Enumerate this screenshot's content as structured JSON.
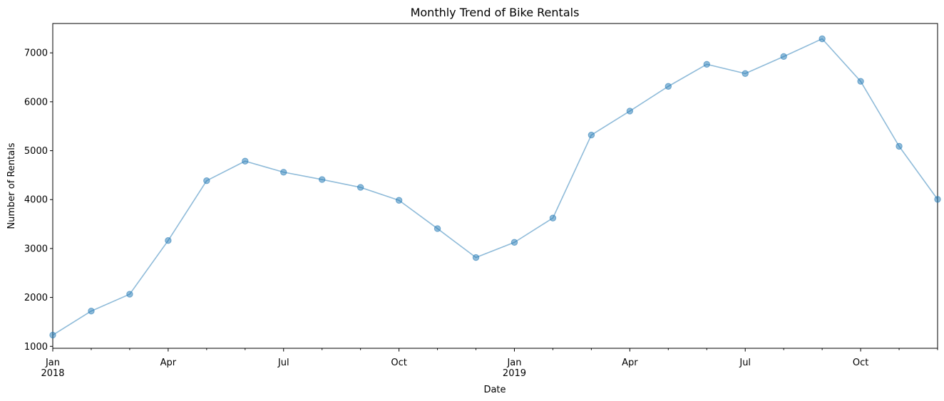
{
  "chart_data": {
    "type": "line",
    "title": "Monthly Trend of Bike Rentals",
    "xlabel": "Date",
    "ylabel": "Number of Rentals",
    "ylim": [
      960,
      7600
    ],
    "xlim": [
      "2018-01",
      "2019-12"
    ],
    "y_ticks": [
      1000,
      2000,
      3000,
      4000,
      5000,
      6000,
      7000
    ],
    "x_ticks": [
      {
        "month": "2018-01",
        "label": "Jan",
        "sublabel": "2018"
      },
      {
        "month": "2018-04",
        "label": "Apr",
        "sublabel": ""
      },
      {
        "month": "2018-07",
        "label": "Jul",
        "sublabel": ""
      },
      {
        "month": "2018-10",
        "label": "Oct",
        "sublabel": ""
      },
      {
        "month": "2019-01",
        "label": "Jan",
        "sublabel": "2019"
      },
      {
        "month": "2019-04",
        "label": "Apr",
        "sublabel": ""
      },
      {
        "month": "2019-07",
        "label": "Jul",
        "sublabel": ""
      },
      {
        "month": "2019-10",
        "label": "Oct",
        "sublabel": ""
      }
    ],
    "grid": false,
    "marker": "circle",
    "color": "#1f77b4",
    "x": [
      "2018-01",
      "2018-02",
      "2018-03",
      "2018-04",
      "2018-05",
      "2018-06",
      "2018-07",
      "2018-08",
      "2018-09",
      "2018-10",
      "2018-11",
      "2018-12",
      "2019-01",
      "2019-02",
      "2019-03",
      "2019-04",
      "2019-05",
      "2019-06",
      "2019-07",
      "2019-08",
      "2019-09",
      "2019-10",
      "2019-11",
      "2019-12"
    ],
    "values": [
      1231,
      1721,
      2066,
      3163,
      4386,
      4786,
      4560,
      4410,
      4250,
      3985,
      3407,
      2816,
      3126,
      3623,
      5320,
      5810,
      6315,
      6766,
      6577,
      6925,
      7287,
      6418,
      5090,
      4005
    ]
  }
}
